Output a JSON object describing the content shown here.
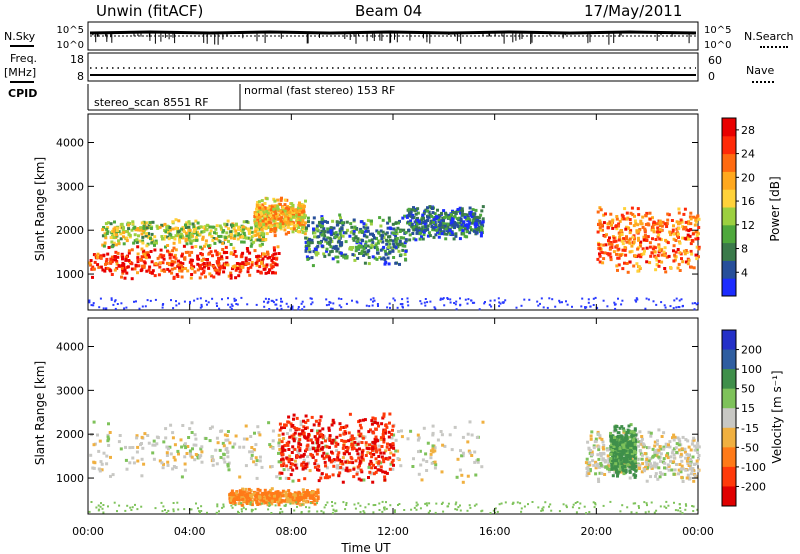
{
  "header": {
    "station": "Unwin (fitACF)",
    "beam": "Beam 04",
    "date": "17/May/2011"
  },
  "top_panels": {
    "nsky_label": "N.Sky",
    "nsky_ticks": [
      "10^5",
      "10^0"
    ],
    "nsearch_label": "N.Search",
    "nsearch_ticks": [
      "10^5",
      "10^0"
    ],
    "freq_label": "Freq.",
    "freq_unit": "[MHz]",
    "freq_ticks": [
      "18",
      "8"
    ],
    "nave_label": "Nave",
    "nave_ticks": [
      "60",
      "0"
    ],
    "cpid_label": "CPID",
    "cpid_segments": [
      {
        "text": "stereo_scan 8551 RF",
        "start_hour": 0.0
      },
      {
        "text": "normal (fast stereo) 153 RF",
        "start_hour": 6.0
      }
    ]
  },
  "chart_data": [
    {
      "type": "heatmap",
      "title": "",
      "xlabel": "Time UT",
      "ylabel": "Slant Range [km]",
      "xlim": [
        0,
        24
      ],
      "ylim": [
        180,
        4650
      ],
      "x_ticks": [
        "00:00",
        "04:00",
        "08:00",
        "12:00",
        "16:00",
        "20:00",
        "00:00"
      ],
      "y_ticks": [
        1000,
        2000,
        3000,
        4000
      ],
      "colorbar": {
        "label": "Power [dB]",
        "ticks": [
          4,
          8,
          12,
          16,
          20,
          24,
          28
        ],
        "range": [
          0,
          30
        ],
        "colors": [
          "#1c2cff",
          "#274f9a",
          "#3a7a4a",
          "#4ea83c",
          "#9cd040",
          "#ffd23a",
          "#ffa81e",
          "#ff6a10",
          "#ff2a08",
          "#e80000"
        ]
      },
      "bands": [
        {
          "range_km": [
            900,
            1700
          ],
          "hours": [
            0.0,
            7.5
          ],
          "power_db": 26
        },
        {
          "range_km": [
            1600,
            2300
          ],
          "hours": [
            0.5,
            7.0
          ],
          "power_db": 14
        },
        {
          "range_km": [
            1900,
            2800
          ],
          "hours": [
            6.5,
            8.5
          ],
          "power_db": 18
        },
        {
          "range_km": [
            1200,
            2400
          ],
          "hours": [
            8.5,
            12.5
          ],
          "power_db": 8
        },
        {
          "range_km": [
            1800,
            2600
          ],
          "hours": [
            12.5,
            15.5
          ],
          "power_db": 6
        },
        {
          "range_km": [
            1000,
            2700
          ],
          "hours": [
            20.0,
            24.0
          ],
          "power_db": 22
        }
      ]
    },
    {
      "type": "heatmap",
      "title": "",
      "xlabel": "Time UT",
      "ylabel": "Slant Range [km]",
      "xlim": [
        0,
        24
      ],
      "ylim": [
        180,
        4650
      ],
      "x_ticks": [
        "00:00",
        "04:00",
        "08:00",
        "12:00",
        "16:00",
        "20:00",
        "00:00"
      ],
      "y_ticks": [
        1000,
        2000,
        3000,
        4000
      ],
      "colorbar": {
        "label": "Velocity [m s⁻¹]",
        "ticks": [
          200,
          100,
          50,
          15,
          -15,
          -50,
          -100,
          -200
        ],
        "colors": [
          "#2430c8",
          "#2f5ea0",
          "#3f8f4a",
          "#7ec25a",
          "#c8c8c4",
          "#f0b040",
          "#ff7a18",
          "#ff3a0a",
          "#e00000"
        ]
      },
      "bands": [
        {
          "range_km": [
            900,
            2400
          ],
          "hours": [
            0.0,
            15.5
          ],
          "velocity": 0
        },
        {
          "range_km": [
            900,
            2600
          ],
          "hours": [
            7.5,
            12.0
          ],
          "velocity": -200
        },
        {
          "range_km": [
            400,
            800
          ],
          "hours": [
            5.5,
            9.0
          ],
          "velocity": -60
        },
        {
          "range_km": [
            900,
            2200
          ],
          "hours": [
            19.5,
            24.0
          ],
          "velocity": 0
        },
        {
          "range_km": [
            1000,
            2300
          ],
          "hours": [
            20.5,
            21.5
          ],
          "velocity": 60
        }
      ]
    }
  ]
}
